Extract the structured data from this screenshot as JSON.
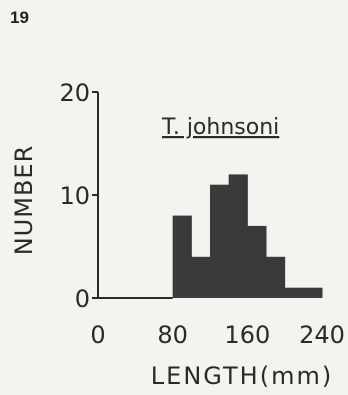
{
  "figure_label": "19",
  "chart_data": {
    "type": "bar",
    "title": "T. johnsoni",
    "xlabel": "LENGTH(mm)",
    "ylabel": "NUMBER",
    "xlim": [
      0,
      240
    ],
    "ylim": [
      0,
      20
    ],
    "x_ticks": [
      "0",
      "80",
      "160",
      "240"
    ],
    "y_ticks": [
      "0",
      "10",
      "20"
    ],
    "bin_width": 20,
    "bins": [
      {
        "x_start": 80,
        "value": 8
      },
      {
        "x_start": 100,
        "value": 4
      },
      {
        "x_start": 120,
        "value": 11
      },
      {
        "x_start": 140,
        "value": 12
      },
      {
        "x_start": 160,
        "value": 7
      },
      {
        "x_start": 180,
        "value": 4
      },
      {
        "x_start": 200,
        "value": 1
      },
      {
        "x_start": 220,
        "value": 1
      }
    ],
    "bar_color": "#3a3a3a",
    "grid": false
  }
}
